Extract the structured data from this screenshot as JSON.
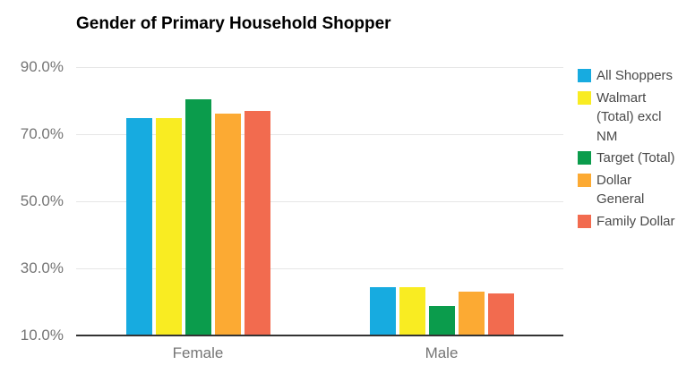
{
  "title": "Gender of Primary Household Shopper",
  "chart_data": {
    "type": "bar",
    "title": "Gender of Primary Household Shopper",
    "categories": [
      "Female",
      "Male"
    ],
    "series": [
      {
        "name": "All Shoppers",
        "color": "#17ABE0",
        "values": [
          74.9,
          24.4
        ]
      },
      {
        "name": "Walmart (Total) excl NM",
        "color": "#F9EC22",
        "values": [
          74.9,
          24.4
        ]
      },
      {
        "name": "Target (Total)",
        "color": "#0B9C4C",
        "values": [
          80.4,
          18.9
        ]
      },
      {
        "name": "Dollar General",
        "color": "#FCAA33",
        "values": [
          76.2,
          23.1
        ]
      },
      {
        "name": "Family Dollar",
        "color": "#F26B4F",
        "values": [
          76.9,
          22.5
        ]
      }
    ],
    "unit": "%",
    "xlabel": "",
    "ylabel": "",
    "axis": {
      "min": 10,
      "max": 90
    },
    "y_ticks": [
      {
        "label": "90.0%",
        "value": 90
      },
      {
        "label": "70.0%",
        "value": 70
      },
      {
        "label": "50.0%",
        "value": 50
      },
      {
        "label": "30.0%",
        "value": 30
      },
      {
        "label": "10.0%",
        "value": 10
      }
    ],
    "grid": true,
    "legend_position": "right",
    "colors": {
      "title_text": "#000000",
      "axis_text": "#757575",
      "legend_text": "#494949",
      "gridline": "#e6e6e6",
      "baseline": "#333333",
      "background": "#ffffff"
    }
  }
}
